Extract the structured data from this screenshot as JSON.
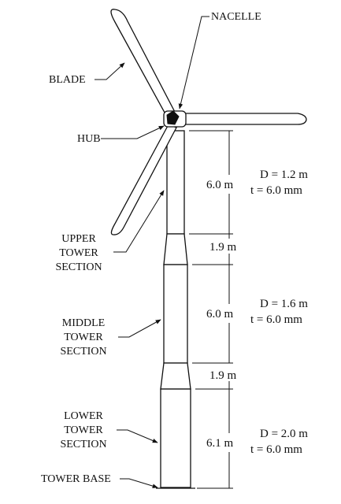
{
  "labels": {
    "blade": "BLADE",
    "nacelle": "NACELLE",
    "hub": "HUB",
    "upper_section": [
      "UPPER",
      "TOWER",
      "SECTION"
    ],
    "middle_section": [
      "MIDDLE",
      "TOWER",
      "SECTION"
    ],
    "lower_section": [
      "LOWER",
      "TOWER",
      "SECTION"
    ],
    "tower_base": "TOWER BASE"
  },
  "dimensions": {
    "upper_length": "6.0 m",
    "upper_taper": "1.9 m",
    "middle_length": "6.0 m",
    "lower_taper": "1.9 m",
    "lower_length": "6.1 m"
  },
  "sections": {
    "upper": {
      "diameter": "D = 1.2 m",
      "thickness": "t = 6.0 mm"
    },
    "middle": {
      "diameter": "D = 1.6 m",
      "thickness": "t = 6.0 mm"
    },
    "lower": {
      "diameter": "D = 2.0 m",
      "thickness": "t = 6.0 mm"
    }
  }
}
